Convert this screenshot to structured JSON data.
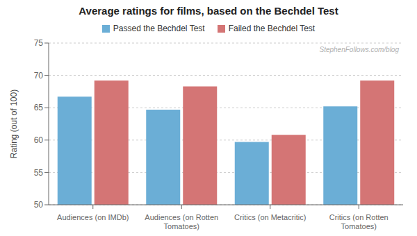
{
  "chart_data": {
    "type": "bar",
    "title": "Average ratings for films, based on the Bechdel Test",
    "ylabel": "Rating (out of 100)",
    "categories": [
      "Audiences (on IMDb)",
      "Audiences (on Rotten\nTomatoes)",
      "Critics (on Metacritic)",
      "Critics (on Rotten\nTomatoes)"
    ],
    "series": [
      {
        "name": "Passed the Bechdel Test",
        "color": "#6baed6",
        "values": [
          66.7,
          64.7,
          59.7,
          65.2
        ]
      },
      {
        "name": "Failed the Bechdel Test",
        "color": "#d47575",
        "values": [
          69.2,
          68.3,
          60.8,
          69.2
        ]
      }
    ],
    "ylim": [
      50,
      75
    ],
    "yticks": [
      50,
      55,
      60,
      65,
      70,
      75
    ],
    "grid": true,
    "legend": "top",
    "annotations": [
      "StephenFollows.com/blog"
    ]
  }
}
